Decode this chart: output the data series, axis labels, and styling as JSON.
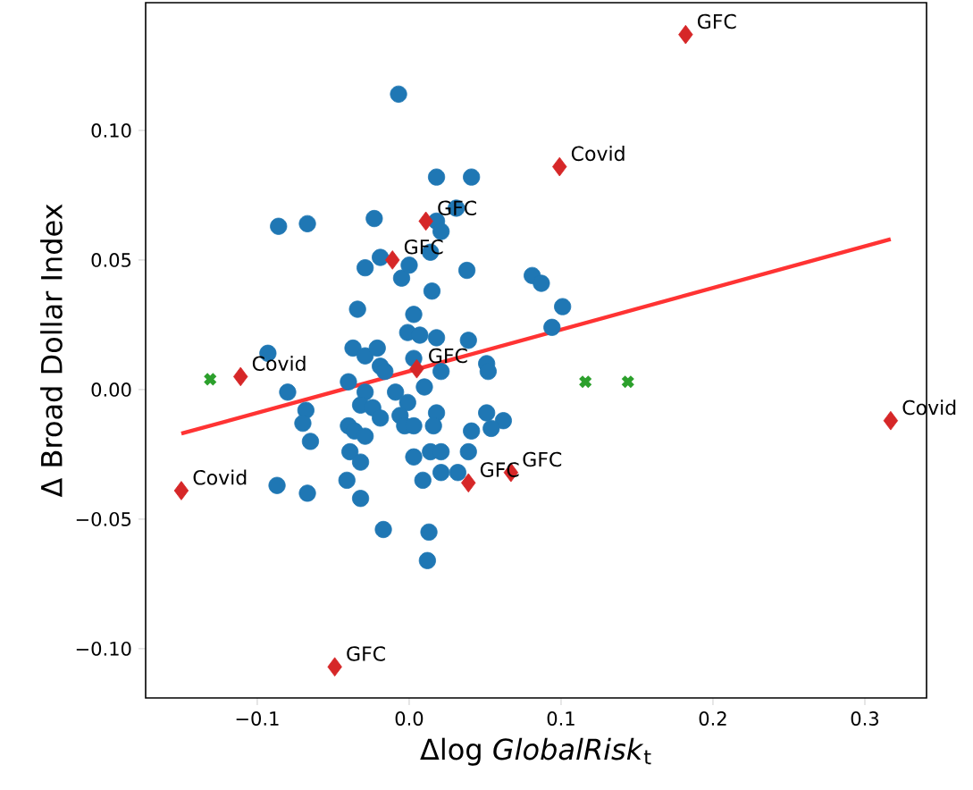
{
  "chart_data": {
    "type": "scatter",
    "xlabel": "Δlog *GlobalRisk*$_{t}$",
    "ylabel": "Δ Broad Dollar Index",
    "xlim": [
      -0.1735,
      0.3406
    ],
    "ylim": [
      -0.119,
      0.1493
    ],
    "xticks": [
      {
        "value": -0.1,
        "label": "−0.1"
      },
      {
        "value": 0,
        "label": "0.0"
      },
      0.1,
      0.2,
      0.3
    ],
    "yticks": [
      {
        "value": -0.1,
        "label": "−0.10"
      },
      {
        "value": -0.05,
        "label": "−0.05"
      },
      {
        "value": 0,
        "label": "0.00"
      },
      0.05,
      {
        "value": 0.1,
        "label": "0.10"
      }
    ],
    "series": [
      {
        "color": "#1f77b4",
        "marker": "circle",
        "x": [
          -0.007,
          0.018,
          0.041,
          -0.086,
          -0.067,
          -0.023,
          0.031,
          0.018,
          0.021,
          0.014,
          -0.029,
          -0.019,
          -0.005,
          0.0,
          0.015,
          0.038,
          0.081,
          0.087,
          0.101,
          0.094,
          -0.034,
          0.003,
          -0.001,
          0.007,
          0.018,
          0.039,
          -0.093,
          -0.037,
          -0.029,
          -0.021,
          -0.019,
          -0.016,
          0.003,
          0.021,
          0.051,
          0.052,
          0.01,
          -0.04,
          -0.08,
          -0.029,
          -0.032,
          -0.024,
          -0.019,
          -0.068,
          -0.07,
          -0.065,
          -0.04,
          -0.036,
          -0.029,
          -0.009,
          -0.001,
          -0.006,
          -0.003,
          0.003,
          0.018,
          0.016,
          0.051,
          0.062,
          0.054,
          0.041,
          -0.039,
          -0.032,
          -0.041,
          -0.032,
          -0.087,
          -0.067,
          0.003,
          0.014,
          0.021,
          0.039,
          0.009,
          0.021,
          0.032,
          -0.017,
          0.013,
          0.012
        ],
        "values": [
          0.114,
          0.082,
          0.082,
          0.063,
          0.064,
          0.066,
          0.07,
          0.065,
          0.061,
          0.053,
          0.047,
          0.051,
          0.043,
          0.048,
          0.038,
          0.046,
          0.044,
          0.041,
          0.032,
          0.024,
          0.031,
          0.029,
          0.022,
          0.021,
          0.02,
          0.019,
          0.014,
          0.016,
          0.013,
          0.016,
          0.009,
          0.007,
          0.012,
          0.007,
          0.01,
          0.007,
          0.001,
          0.003,
          -0.001,
          -0.001,
          -0.006,
          -0.007,
          -0.011,
          -0.008,
          -0.013,
          -0.02,
          -0.014,
          -0.016,
          -0.018,
          -0.001,
          -0.005,
          -0.01,
          -0.014,
          -0.014,
          -0.009,
          -0.014,
          -0.009,
          -0.012,
          -0.015,
          -0.016,
          -0.024,
          -0.028,
          -0.035,
          -0.042,
          -0.037,
          -0.04,
          -0.026,
          -0.024,
          -0.024,
          -0.024,
          -0.035,
          -0.032,
          -0.032,
          -0.054,
          -0.055,
          -0.066
        ]
      },
      {
        "type": "line",
        "color": "#ff3333",
        "marker": "none",
        "line_style": "solid",
        "x": [
          -0.15,
          0.317
        ],
        "values": [
          -0.017,
          0.058
        ]
      },
      {
        "type": "scatter",
        "color": "#2ca02c",
        "marker": "cross",
        "x": [
          -0.131,
          0.116,
          0.144
        ],
        "values": [
          0.004,
          0.003,
          0.003
        ]
      },
      {
        "type": "scatter",
        "color": "#d62728",
        "marker": "diamond",
        "x": [
          0.182,
          0.099,
          0.011,
          -0.011,
          0.005,
          -0.111,
          0.317,
          -0.15,
          0.039,
          0.067,
          -0.049
        ],
        "values": [
          0.137,
          0.086,
          0.065,
          0.05,
          0.008,
          0.005,
          -0.012,
          -0.039,
          -0.036,
          -0.032,
          -0.107
        ]
      }
    ],
    "annotations": [
      {
        "text": "GFC",
        "x": 0.182,
        "y": 0.137
      },
      {
        "text": "Covid",
        "x": 0.099,
        "y": 0.086
      },
      {
        "text": "GFC",
        "x": 0.011,
        "y": 0.065
      },
      {
        "text": "GFC",
        "x": -0.011,
        "y": 0.05
      },
      {
        "text": "GFC",
        "x": 0.005,
        "y": 0.008
      },
      {
        "text": "Covid",
        "x": -0.111,
        "y": 0.005
      },
      {
        "text": "Covid",
        "x": 0.317,
        "y": -0.012
      },
      {
        "text": "Covid",
        "x": -0.15,
        "y": -0.039
      },
      {
        "text": "GFC",
        "x": 0.039,
        "y": -0.036
      },
      {
        "text": "GFC",
        "x": 0.067,
        "y": -0.032
      },
      {
        "text": "GFC",
        "x": -0.049,
        "y": -0.107
      }
    ]
  }
}
